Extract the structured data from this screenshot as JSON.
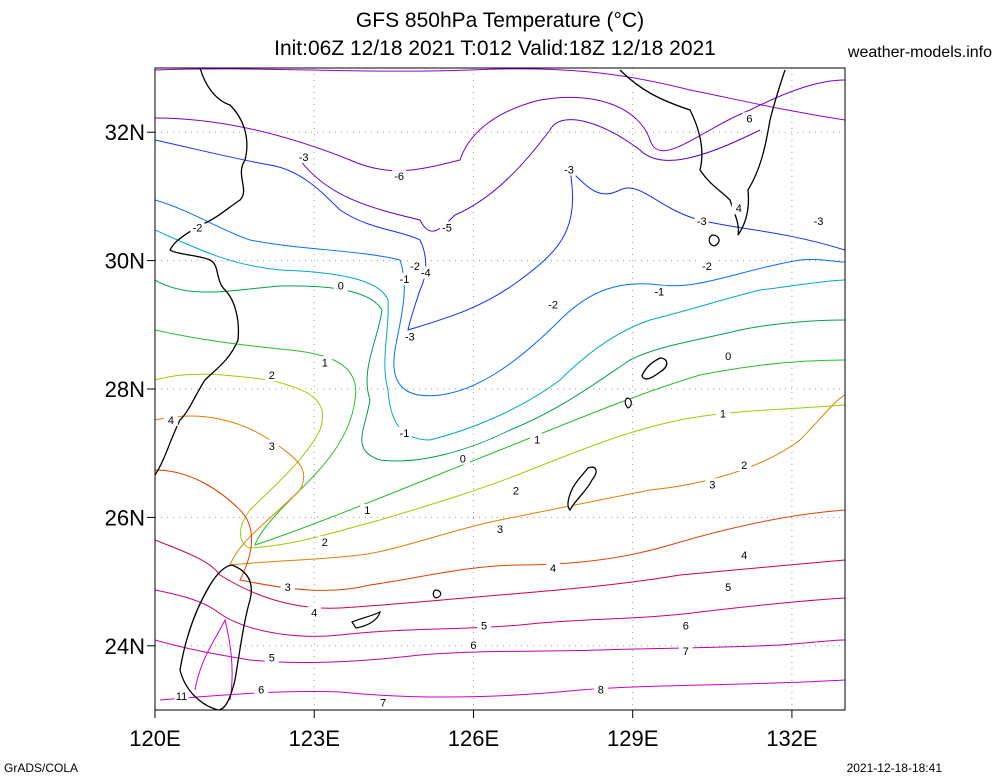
{
  "title_line1": "GFS 850hPa Temperature (°C)",
  "title_line2": "Init:06Z 12/18 2021 T:012 Valid:18Z 12/18 2021",
  "site": "weather-models.info",
  "credit": "GrADS/COLA",
  "timestamp": "2021-12-18-18:41",
  "map": {
    "lon_range": [
      120,
      133
    ],
    "lat_range": [
      23,
      33
    ],
    "lon_ticks": [
      {
        "v": 120,
        "label": "120E"
      },
      {
        "v": 123,
        "label": "123E"
      },
      {
        "v": 126,
        "label": "126E"
      },
      {
        "v": 129,
        "label": "129E"
      },
      {
        "v": 132,
        "label": "132E"
      }
    ],
    "lat_ticks": [
      {
        "v": 24,
        "label": "24N"
      },
      {
        "v": 26,
        "label": "26N"
      },
      {
        "v": 28,
        "label": "28N"
      },
      {
        "v": 30,
        "label": "30N"
      },
      {
        "v": 32,
        "label": "32N"
      }
    ],
    "grid": true,
    "contour_labels": [
      {
        "text": "-3",
        "lon": 122.8,
        "lat": 31.6
      },
      {
        "text": "-6",
        "lon": 124.6,
        "lat": 31.3
      },
      {
        "text": "-3",
        "lon": 127.8,
        "lat": 31.4
      },
      {
        "text": "6",
        "lon": 131.2,
        "lat": 32.2
      },
      {
        "text": "-2",
        "lon": 120.8,
        "lat": 30.5
      },
      {
        "text": "-5",
        "lon": 125.5,
        "lat": 30.5
      },
      {
        "text": "-2",
        "lon": 124.9,
        "lat": 29.9
      },
      {
        "text": "-1",
        "lon": 124.7,
        "lat": 29.7
      },
      {
        "text": "-4",
        "lon": 125.1,
        "lat": 29.8
      },
      {
        "text": "0",
        "lon": 123.5,
        "lat": 29.6
      },
      {
        "text": "-3",
        "lon": 130.3,
        "lat": 30.6
      },
      {
        "text": "4",
        "lon": 131.0,
        "lat": 30.8
      },
      {
        "text": "-3",
        "lon": 132.5,
        "lat": 30.6
      },
      {
        "text": "-2",
        "lon": 130.4,
        "lat": 29.9
      },
      {
        "text": "-1",
        "lon": 129.5,
        "lat": 29.5
      },
      {
        "text": "-2",
        "lon": 127.5,
        "lat": 29.3
      },
      {
        "text": "-3",
        "lon": 124.8,
        "lat": 28.8
      },
      {
        "text": "1",
        "lon": 123.2,
        "lat": 28.4
      },
      {
        "text": "0",
        "lon": 130.8,
        "lat": 28.5
      },
      {
        "text": "2",
        "lon": 122.2,
        "lat": 28.2
      },
      {
        "text": "1",
        "lon": 130.7,
        "lat": 27.6
      },
      {
        "text": "4",
        "lon": 120.3,
        "lat": 27.5
      },
      {
        "text": "-1",
        "lon": 124.7,
        "lat": 27.3
      },
      {
        "text": "1",
        "lon": 127.2,
        "lat": 27.2
      },
      {
        "text": "3",
        "lon": 122.2,
        "lat": 27.1
      },
      {
        "text": "0",
        "lon": 125.8,
        "lat": 26.9
      },
      {
        "text": "2",
        "lon": 131.1,
        "lat": 26.8
      },
      {
        "text": "2",
        "lon": 126.8,
        "lat": 26.4
      },
      {
        "text": "3",
        "lon": 130.5,
        "lat": 26.5
      },
      {
        "text": "1",
        "lon": 124.0,
        "lat": 26.1
      },
      {
        "text": "3",
        "lon": 126.5,
        "lat": 25.8
      },
      {
        "text": "2",
        "lon": 123.2,
        "lat": 25.6
      },
      {
        "text": "4",
        "lon": 131.1,
        "lat": 25.4
      },
      {
        "text": "4",
        "lon": 127.5,
        "lat": 25.2
      },
      {
        "text": "3",
        "lon": 122.5,
        "lat": 24.9
      },
      {
        "text": "5",
        "lon": 130.8,
        "lat": 24.9
      },
      {
        "text": "4",
        "lon": 123.0,
        "lat": 24.5
      },
      {
        "text": "5",
        "lon": 126.2,
        "lat": 24.3
      },
      {
        "text": "6",
        "lon": 130.0,
        "lat": 24.3
      },
      {
        "text": "6",
        "lon": 126.0,
        "lat": 24.0
      },
      {
        "text": "5",
        "lon": 122.2,
        "lat": 23.8
      },
      {
        "text": "7",
        "lon": 130.0,
        "lat": 23.9
      },
      {
        "text": "6",
        "lon": 122.0,
        "lat": 23.3
      },
      {
        "text": "8",
        "lon": 128.4,
        "lat": 23.3
      },
      {
        "text": "7",
        "lon": 124.3,
        "lat": 23.1
      },
      {
        "text": "11",
        "lon": 120.5,
        "lat": 23.2
      }
    ]
  },
  "colors": {
    "land": "#000000",
    "grid": "#9a9a9a",
    "contours": [
      "#9400d3",
      "#4b00cc",
      "#0033ff",
      "#008cff",
      "#00b4b4",
      "#00a050",
      "#26c026",
      "#9ccc00",
      "#c8aa00",
      "#e07800",
      "#e04000",
      "#d0004a",
      "#c8007a",
      "#c000a0",
      "#cc00cc"
    ]
  }
}
